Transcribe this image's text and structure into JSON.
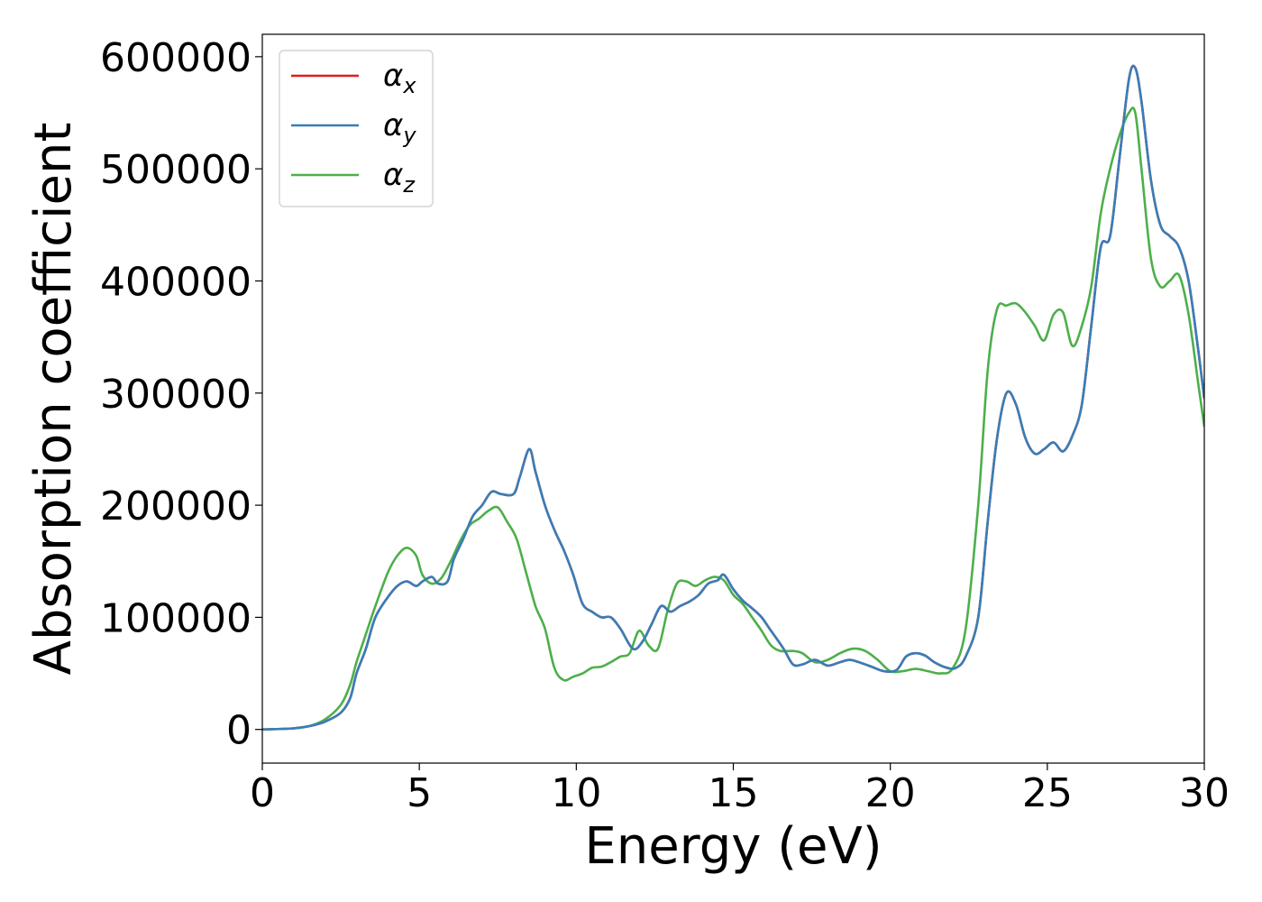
{
  "chart_data": {
    "type": "line",
    "title": "",
    "xlabel": "Energy (eV)",
    "ylabel": "Absorption coefficient",
    "xlim": [
      0,
      30
    ],
    "ylim": [
      -30000,
      620000
    ],
    "xticks": [
      0,
      5,
      10,
      15,
      20,
      25,
      30
    ],
    "yticks": [
      0,
      100000,
      200000,
      300000,
      400000,
      500000,
      600000
    ],
    "grid": false,
    "legend_position": "upper left",
    "colors": {
      "alpha_x": "#e41a1c",
      "alpha_y": "#377eb8",
      "alpha_z": "#4daf4a"
    },
    "legend": [
      {
        "symbol": "α",
        "sub": "x",
        "color": "#e41a1c"
      },
      {
        "symbol": "α",
        "sub": "y",
        "color": "#377eb8"
      },
      {
        "symbol": "α",
        "sub": "z",
        "color": "#4daf4a"
      }
    ],
    "series": [
      {
        "key": "alpha_x",
        "x": [
          0,
          1,
          1.5,
          2,
          2.5,
          2.8,
          3.0,
          3.3,
          3.6,
          4.0,
          4.3,
          4.6,
          4.9,
          5.1,
          5.4,
          5.6,
          5.9,
          6.1,
          6.4,
          6.7,
          7.0,
          7.3,
          7.6,
          8.0,
          8.2,
          8.5,
          8.7,
          9.0,
          9.3,
          9.6,
          9.9,
          10.2,
          10.5,
          10.8,
          11.1,
          11.4,
          11.8,
          12.1,
          12.4,
          12.7,
          13.0,
          13.3,
          13.6,
          13.9,
          14.2,
          14.5,
          14.7,
          15.0,
          15.3,
          15.6,
          15.9,
          16.2,
          16.6,
          16.9,
          17.2,
          17.6,
          18.0,
          18.4,
          18.7,
          19.0,
          19.4,
          19.8,
          20.2,
          20.5,
          20.8,
          21.1,
          21.4,
          21.8,
          22.1,
          22.4,
          22.8,
          23.1,
          23.4,
          23.7,
          24.0,
          24.3,
          24.6,
          24.9,
          25.2,
          25.5,
          25.8,
          26.1,
          26.4,
          26.7,
          27.0,
          27.3,
          27.6,
          27.8,
          28.0,
          28.3,
          28.6,
          28.9,
          29.2,
          29.5,
          29.8,
          30.0
        ],
        "y": [
          0,
          1000,
          3000,
          7000,
          15000,
          28000,
          50000,
          72000,
          100000,
          118000,
          128000,
          132000,
          128000,
          132000,
          136000,
          130000,
          132000,
          152000,
          170000,
          190000,
          200000,
          212000,
          210000,
          210000,
          225000,
          250000,
          230000,
          200000,
          178000,
          160000,
          138000,
          112000,
          105000,
          100000,
          100000,
          90000,
          72000,
          78000,
          94000,
          110000,
          105000,
          110000,
          114000,
          120000,
          130000,
          133000,
          138000,
          125000,
          115000,
          108000,
          100000,
          88000,
          72000,
          58000,
          58000,
          62000,
          57000,
          60000,
          62000,
          60000,
          56000,
          52000,
          53000,
          65000,
          68000,
          66000,
          60000,
          55000,
          55000,
          65000,
          100000,
          185000,
          260000,
          300000,
          290000,
          260000,
          246000,
          250000,
          256000,
          248000,
          262000,
          290000,
          360000,
          430000,
          440000,
          510000,
          580000,
          590000,
          560000,
          490000,
          450000,
          440000,
          430000,
          400000,
          340000,
          295000
        ]
      },
      {
        "key": "alpha_y",
        "x": [
          0,
          1,
          1.5,
          2,
          2.5,
          2.8,
          3.0,
          3.3,
          3.6,
          4.0,
          4.3,
          4.6,
          4.9,
          5.1,
          5.4,
          5.6,
          5.9,
          6.1,
          6.4,
          6.7,
          7.0,
          7.3,
          7.6,
          8.0,
          8.2,
          8.5,
          8.7,
          9.0,
          9.3,
          9.6,
          9.9,
          10.2,
          10.5,
          10.8,
          11.1,
          11.4,
          11.8,
          12.1,
          12.4,
          12.7,
          13.0,
          13.3,
          13.6,
          13.9,
          14.2,
          14.5,
          14.7,
          15.0,
          15.3,
          15.6,
          15.9,
          16.2,
          16.6,
          16.9,
          17.2,
          17.6,
          18.0,
          18.4,
          18.7,
          19.0,
          19.4,
          19.8,
          20.2,
          20.5,
          20.8,
          21.1,
          21.4,
          21.8,
          22.1,
          22.4,
          22.8,
          23.1,
          23.4,
          23.7,
          24.0,
          24.3,
          24.6,
          24.9,
          25.2,
          25.5,
          25.8,
          26.1,
          26.4,
          26.7,
          27.0,
          27.3,
          27.6,
          27.8,
          28.0,
          28.3,
          28.6,
          28.9,
          29.2,
          29.5,
          29.8,
          30.0
        ],
        "y": [
          0,
          1000,
          3000,
          7000,
          15000,
          28000,
          50000,
          72000,
          100000,
          118000,
          128000,
          132000,
          128000,
          132000,
          136000,
          130000,
          132000,
          152000,
          170000,
          190000,
          200000,
          212000,
          210000,
          210000,
          225000,
          250000,
          230000,
          200000,
          178000,
          160000,
          138000,
          112000,
          105000,
          100000,
          100000,
          90000,
          72000,
          78000,
          94000,
          110000,
          105000,
          110000,
          114000,
          120000,
          130000,
          133000,
          138000,
          125000,
          115000,
          108000,
          100000,
          88000,
          72000,
          58000,
          58000,
          62000,
          57000,
          60000,
          62000,
          60000,
          56000,
          52000,
          53000,
          65000,
          68000,
          66000,
          60000,
          55000,
          55000,
          65000,
          100000,
          185000,
          260000,
          300000,
          290000,
          260000,
          246000,
          250000,
          256000,
          248000,
          262000,
          290000,
          360000,
          430000,
          440000,
          510000,
          580000,
          590000,
          560000,
          490000,
          450000,
          440000,
          430000,
          400000,
          340000,
          295000
        ]
      },
      {
        "key": "alpha_z",
        "x": [
          0,
          1,
          1.5,
          2,
          2.5,
          2.8,
          3.0,
          3.3,
          3.6,
          4.0,
          4.3,
          4.6,
          4.9,
          5.1,
          5.4,
          5.7,
          6.0,
          6.3,
          6.6,
          6.9,
          7.2,
          7.5,
          7.8,
          8.1,
          8.4,
          8.7,
          9.0,
          9.3,
          9.6,
          9.9,
          10.2,
          10.5,
          10.8,
          11.1,
          11.4,
          11.7,
          12.0,
          12.3,
          12.6,
          12.9,
          13.2,
          13.5,
          13.8,
          14.1,
          14.4,
          14.7,
          15.0,
          15.3,
          15.6,
          15.9,
          16.2,
          16.5,
          16.9,
          17.2,
          17.6,
          18.0,
          18.4,
          18.8,
          19.2,
          19.6,
          20.0,
          20.4,
          20.8,
          21.2,
          21.6,
          22.0,
          22.4,
          22.8,
          23.1,
          23.4,
          23.7,
          24.0,
          24.3,
          24.6,
          24.9,
          25.2,
          25.5,
          25.8,
          26.1,
          26.4,
          26.7,
          27.0,
          27.3,
          27.6,
          27.8,
          28.0,
          28.3,
          28.6,
          28.9,
          29.2,
          29.5,
          29.8,
          30.0
        ],
        "y": [
          0,
          1000,
          3000,
          9000,
          22000,
          40000,
          60000,
          85000,
          110000,
          140000,
          155000,
          162000,
          155000,
          138000,
          130000,
          135000,
          150000,
          168000,
          182000,
          188000,
          195000,
          198000,
          185000,
          170000,
          140000,
          110000,
          90000,
          55000,
          44000,
          47000,
          50000,
          55000,
          56000,
          60000,
          65000,
          68000,
          88000,
          75000,
          72000,
          105000,
          130000,
          132000,
          128000,
          133000,
          136000,
          133000,
          120000,
          112000,
          100000,
          88000,
          75000,
          70000,
          70000,
          68000,
          60000,
          62000,
          68000,
          72000,
          70000,
          62000,
          52000,
          52000,
          54000,
          52000,
          50000,
          55000,
          90000,
          200000,
          320000,
          375000,
          378000,
          380000,
          372000,
          360000,
          347000,
          370000,
          372000,
          342000,
          360000,
          395000,
          460000,
          500000,
          530000,
          550000,
          550000,
          500000,
          420000,
          395000,
          400000,
          405000,
          370000,
          310000,
          270000
        ]
      }
    ]
  }
}
